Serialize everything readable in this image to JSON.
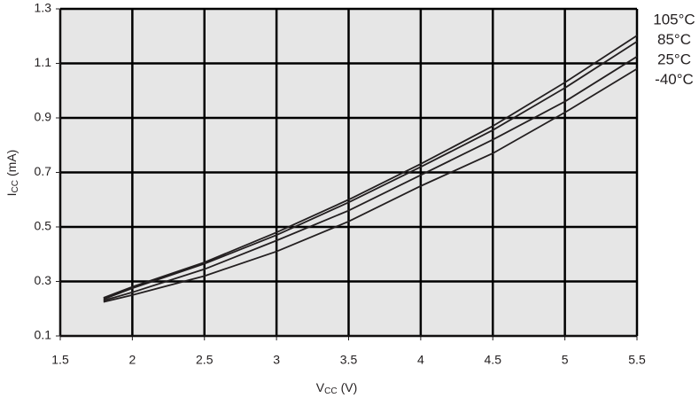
{
  "chart_data": {
    "type": "line",
    "xlabel": [
      "V",
      "CC",
      "(V)"
    ],
    "ylabel": [
      "I",
      "CC",
      "(mA)"
    ],
    "x": [
      1.8,
      2,
      2.5,
      3,
      3.5,
      4,
      4.5,
      5,
      5.5
    ],
    "series": [
      {
        "name": "105°C",
        "color": "#231f20",
        "values": [
          0.24,
          0.28,
          0.37,
          0.48,
          0.6,
          0.731,
          0.87,
          1.03,
          1.202
        ]
      },
      {
        "name": "85°C",
        "color": "#231f20",
        "values": [
          0.235,
          0.275,
          0.365,
          0.47,
          0.59,
          0.72,
          0.855,
          1.01,
          1.18
        ]
      },
      {
        "name": "25°C",
        "color": "#231f20",
        "values": [
          0.23,
          0.26,
          0.345,
          0.45,
          0.56,
          0.69,
          0.82,
          0.96,
          1.125
        ]
      },
      {
        "name": "-40°C",
        "color": "#231f20",
        "values": [
          0.225,
          0.25,
          0.32,
          0.41,
          0.52,
          0.65,
          0.77,
          0.92,
          1.08
        ]
      }
    ],
    "xlim": [
      1.5,
      5.5
    ],
    "xticks": [
      1.5,
      2,
      2.5,
      3,
      3.5,
      4,
      4.5,
      5,
      5.5
    ],
    "ylim": [
      0.1,
      1.3
    ],
    "yticks": [
      0.1,
      0.3,
      0.5,
      0.7,
      0.9,
      1.1,
      1.3
    ],
    "grid": true,
    "plot_background": "#e6e6e6",
    "grid_color": "#000000"
  }
}
